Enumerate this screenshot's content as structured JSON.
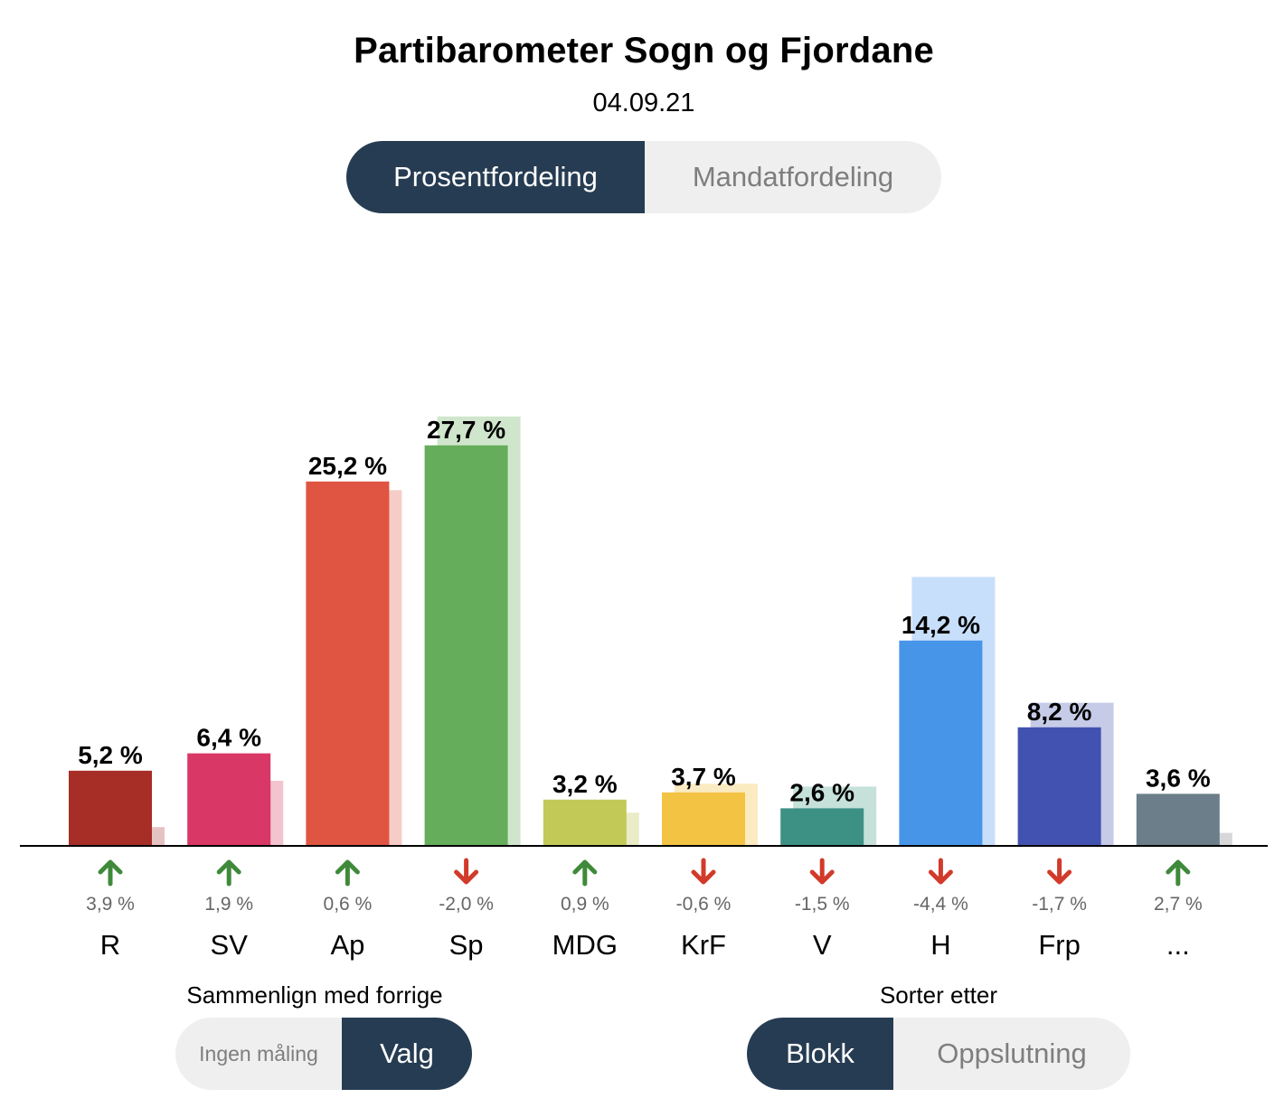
{
  "header": {
    "title": "Partibarometer Sogn og Fjordane",
    "date": "04.09.21"
  },
  "view_toggle": {
    "options": [
      "Prosentfordeling",
      "Mandatfordeling"
    ],
    "selected": "Prosentfordeling"
  },
  "compare": {
    "label": "Sammenlign med forrige",
    "options": [
      "Ingen måling",
      "Valg"
    ],
    "selected": "Valg"
  },
  "sort": {
    "label": "Sorter etter",
    "options": [
      "Blokk",
      "Oppslutning"
    ],
    "selected": "Blokk"
  },
  "colors": {
    "up_arrow": "#3f8a3a",
    "down_arrow": "#d23a2a",
    "active_toggle": "#263c52",
    "inactive_toggle": "#efefef",
    "change_text": "#666666"
  },
  "chart_data": {
    "type": "bar",
    "categories": [
      "R",
      "SV",
      "Ap",
      "Sp",
      "MDG",
      "KrF",
      "V",
      "H",
      "Frp",
      "..."
    ],
    "values": [
      5.2,
      6.4,
      25.2,
      27.7,
      3.2,
      3.7,
      2.6,
      14.2,
      8.2,
      3.6
    ],
    "value_labels": [
      "5,2 %",
      "6,4 %",
      "25,2 %",
      "27,7 %",
      "3,2 %",
      "3,7 %",
      "2,6 %",
      "14,2 %",
      "8,2 %",
      "3,6 %"
    ],
    "previous_values": [
      1.3,
      4.5,
      24.6,
      29.7,
      2.3,
      4.3,
      4.1,
      18.6,
      9.9,
      0.9
    ],
    "changes": [
      3.9,
      1.9,
      0.6,
      -2.0,
      0.9,
      -0.6,
      -1.5,
      -4.4,
      -1.7,
      2.7
    ],
    "change_labels": [
      "3,9 %",
      "1,9 %",
      "0,6 %",
      "-2,0 %",
      "0,9 %",
      "-0,6 %",
      "-1,5 %",
      "-4,4 %",
      "-1,7 %",
      "2,7 %"
    ],
    "colors": [
      "#a72d27",
      "#d93866",
      "#e05442",
      "#66ad5b",
      "#c3c957",
      "#f3c344",
      "#3d9184",
      "#4795e9",
      "#4252b1",
      "#6b7e8a"
    ],
    "previous_colors": [
      "#e6c3c3",
      "#f3c3cf",
      "#f5cdc6",
      "#d0e6cc",
      "#e9ecc6",
      "#fbebc2",
      "#c5e1da",
      "#c7dffa",
      "#c6cbe8",
      "#d6d8da"
    ],
    "series": [
      {
        "name": "Prosentfordeling",
        "values": [
          5.2,
          6.4,
          25.2,
          27.7,
          3.2,
          3.7,
          2.6,
          14.2,
          8.2,
          3.6
        ]
      },
      {
        "name": "Valg",
        "values": [
          1.3,
          4.5,
          24.6,
          29.7,
          2.3,
          4.3,
          4.1,
          18.6,
          9.9,
          0.9
        ]
      }
    ],
    "ylim": [
      0,
      30
    ],
    "xlabel": "",
    "ylabel": "",
    "grid": false,
    "legend": "none"
  }
}
